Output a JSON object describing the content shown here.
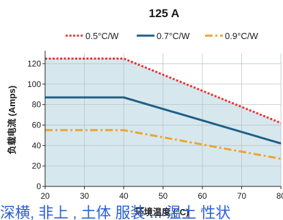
{
  "chart_data": {
    "type": "line",
    "title": "125 A",
    "xlabel": "环境温度 (°C)",
    "ylabel": "负载电流 (Amps)",
    "xlim": [
      20,
      80
    ],
    "ylim": [
      0,
      130
    ],
    "xticks": [
      20,
      30,
      40,
      50,
      60,
      70,
      80
    ],
    "yticks": [
      0,
      20,
      40,
      60,
      80,
      100,
      120
    ],
    "grid": true,
    "legend_position": "top",
    "shaded_area": {
      "color": "#d7e7ee",
      "follows_series": "0.5°C/W"
    },
    "series": [
      {
        "name": "0.5°C/W",
        "style": "dotted",
        "color": "#e8312f",
        "x": [
          20,
          40,
          80
        ],
        "y": [
          125,
          125,
          62
        ]
      },
      {
        "name": "0.7°C/W",
        "style": "solid",
        "color": "#1b5f86",
        "x": [
          20,
          40,
          80
        ],
        "y": [
          87,
          87,
          42
        ]
      },
      {
        "name": "0.9°C/W",
        "style": "dashdot",
        "color": "#eba52a",
        "x": [
          20,
          40,
          80
        ],
        "y": [
          55,
          55,
          27
        ]
      }
    ]
  },
  "bottom_text": "深横, 非上 , 土体 服装 ... 温土 性状 "
}
